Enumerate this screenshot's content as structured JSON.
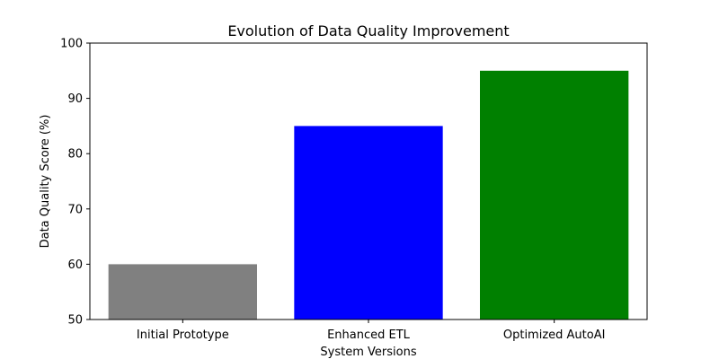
{
  "chart_data": {
    "type": "bar",
    "title": "Evolution of Data Quality Improvement",
    "xlabel": "System Versions",
    "ylabel": "Data Quality Score (%)",
    "categories": [
      "Initial Prototype",
      "Enhanced ETL",
      "Optimized AutoAI"
    ],
    "values": [
      60,
      85,
      95
    ],
    "colors": [
      "#808080",
      "#0000ff",
      "#008000"
    ],
    "ylim": [
      50,
      100
    ],
    "yticks": [
      50,
      60,
      70,
      80,
      90,
      100
    ],
    "grid": false,
    "legend": "none"
  }
}
